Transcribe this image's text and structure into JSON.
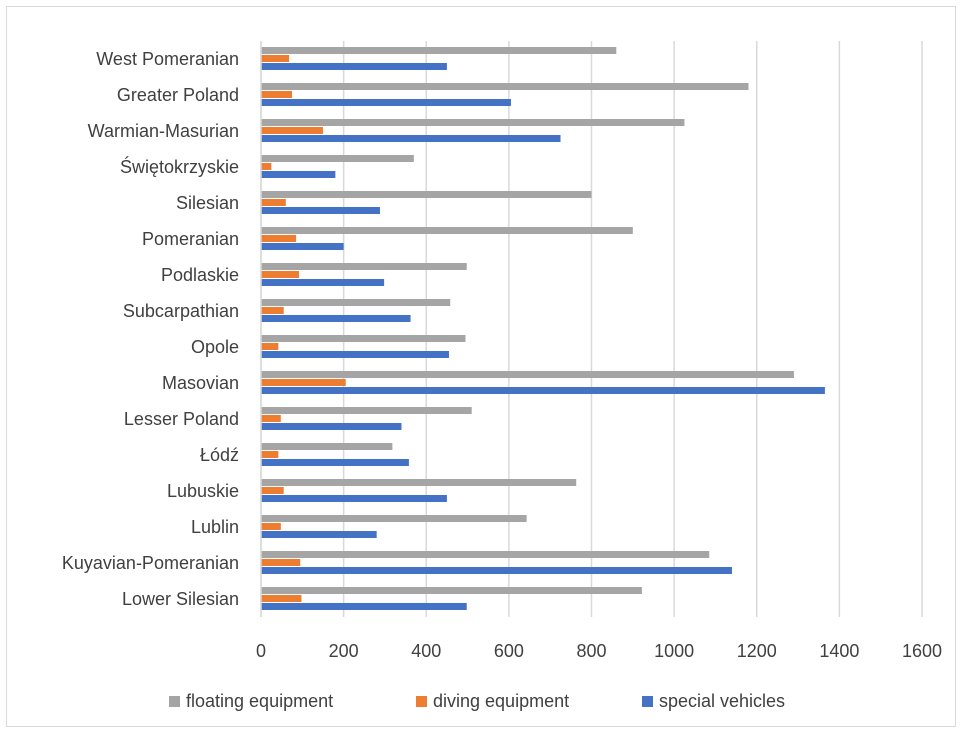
{
  "chart_data": {
    "type": "bar",
    "orientation": "horizontal",
    "categories": [
      "West Pomeranian",
      "Greater Poland",
      "Warmian-Masurian",
      "Świętokrzyskie",
      "Silesian",
      "Pomeranian",
      "Podlaskie",
      "Subcarpathian",
      "Opole",
      "Masovian",
      "Lesser Poland",
      "Łódź",
      "Lubuskie",
      "Lublin",
      "Kuyavian-Pomeranian",
      "Lower Silesian"
    ],
    "series": [
      {
        "name": "floating equipment",
        "color": "#a5a5a5",
        "values": [
          860,
          1180,
          1025,
          370,
          800,
          900,
          498,
          458,
          495,
          1290,
          510,
          318,
          763,
          643,
          1085,
          922
        ]
      },
      {
        "name": "diving equipment",
        "color": "#ed7d31",
        "values": [
          68,
          75,
          150,
          25,
          60,
          85,
          92,
          55,
          42,
          205,
          48,
          42,
          55,
          48,
          95,
          98
        ]
      },
      {
        "name": "special vehicles",
        "color": "#4472c4",
        "values": [
          450,
          605,
          725,
          180,
          288,
          200,
          298,
          362,
          455,
          1365,
          340,
          358,
          450,
          280,
          1140,
          498
        ]
      }
    ],
    "xlim": [
      0,
      1600
    ],
    "xticks": [
      "0",
      "200",
      "400",
      "600",
      "800",
      "1000",
      "1200",
      "1400",
      "1600"
    ],
    "title": "",
    "xlabel": "",
    "ylabel": "",
    "grid": "vertical",
    "legend_position": "bottom"
  }
}
